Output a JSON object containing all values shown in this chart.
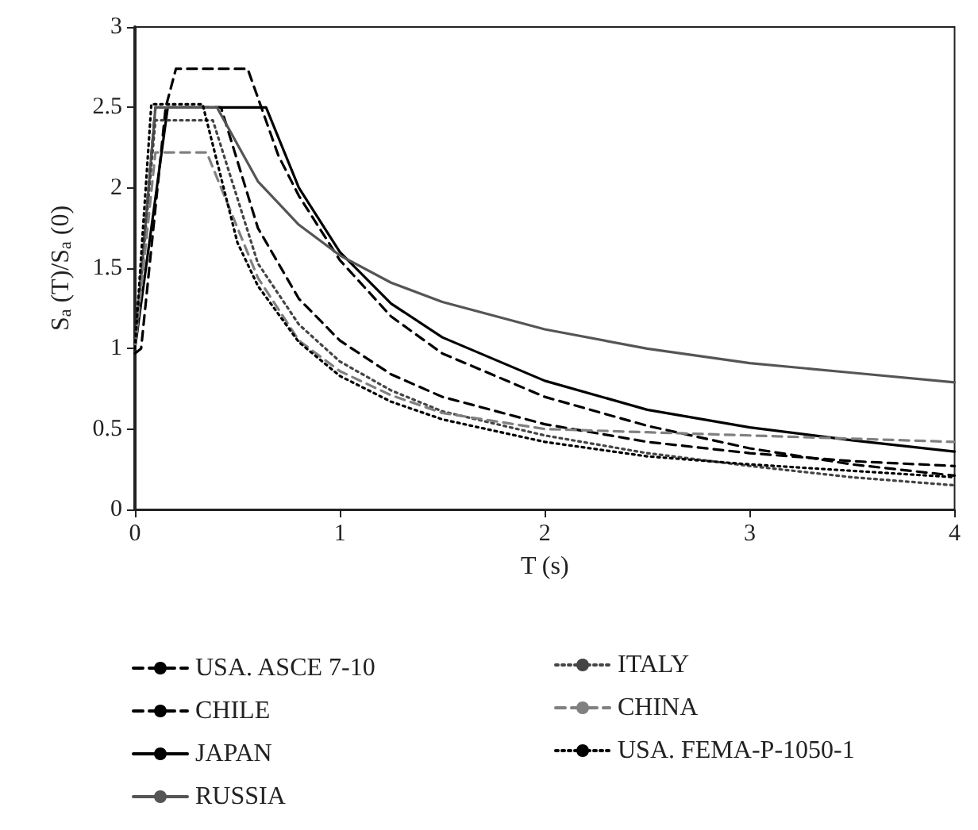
{
  "chart_data": {
    "type": "line",
    "xlabel": "T (s)",
    "ylabel": "S$_{a}$ (T)/S$_{a}$ (0)",
    "xlim": [
      0,
      4
    ],
    "xticks": [
      0,
      1,
      2,
      3,
      4
    ],
    "ylim": [
      0,
      3
    ],
    "yticks": [
      0,
      0.5,
      1,
      1.5,
      2,
      2.5,
      3
    ],
    "grid": false,
    "legend": "bottom",
    "marker": "none",
    "series": [
      {
        "name": "USA. ASCE 7-10",
        "color": "#000000",
        "line_style": "dashed",
        "x": [
          0,
          0.1,
          0.42,
          0.6,
          0.8,
          1,
          1.25,
          1.5,
          2,
          2.5,
          3,
          3.5,
          4
        ],
        "values": [
          1,
          2.5,
          2.5,
          1.75,
          1.31,
          1.05,
          0.84,
          0.7,
          0.53,
          0.42,
          0.35,
          0.3,
          0.27
        ]
      },
      {
        "name": "CHILE",
        "color": "#000000",
        "line_style": "dashed",
        "x": [
          0,
          0.03,
          0.15,
          0.2,
          0.55,
          0.7,
          0.8,
          1,
          1.25,
          1.5,
          2,
          2.5,
          3,
          3.5,
          4
        ],
        "values": [
          0.97,
          1,
          2.5,
          2.74,
          2.74,
          2.2,
          1.95,
          1.55,
          1.2,
          0.97,
          0.7,
          0.52,
          0.38,
          0.28,
          0.21
        ]
      },
      {
        "name": "JAPAN",
        "color": "#000000",
        "line_style": "solid",
        "x": [
          0,
          0.16,
          0.64,
          0.8,
          1,
          1.25,
          1.5,
          2,
          2.5,
          3,
          3.5,
          4
        ],
        "values": [
          1,
          2.5,
          2.5,
          2.0,
          1.6,
          1.28,
          1.07,
          0.8,
          0.62,
          0.51,
          0.43,
          0.36
        ]
      },
      {
        "name": "RUSSIA",
        "color": "#555555",
        "line_style": "solid",
        "x": [
          0,
          0.1,
          0.4,
          0.6,
          0.8,
          1,
          1.25,
          1.5,
          2,
          2.5,
          3,
          3.5,
          4
        ],
        "values": [
          1,
          2.5,
          2.5,
          2.04,
          1.77,
          1.58,
          1.41,
          1.29,
          1.12,
          1.0,
          0.91,
          0.85,
          0.79
        ]
      },
      {
        "name": "ITALY",
        "color": "#444444",
        "line_style": "dotted",
        "x": [
          0,
          0.1,
          0.38,
          0.6,
          0.8,
          1,
          1.25,
          1.5,
          2,
          2.5,
          3,
          3.5,
          4
        ],
        "values": [
          1,
          2.42,
          2.42,
          1.53,
          1.15,
          0.92,
          0.74,
          0.61,
          0.46,
          0.35,
          0.27,
          0.2,
          0.15
        ]
      },
      {
        "name": "CHINA",
        "color": "#808080",
        "line_style": "dashed",
        "x": [
          0,
          0.1,
          0.35,
          0.6,
          0.8,
          1,
          1.25,
          1.5,
          2,
          2.5,
          3,
          3.5,
          4
        ],
        "values": [
          1,
          2.22,
          2.22,
          1.44,
          1.05,
          0.86,
          0.71,
          0.6,
          0.5,
          0.48,
          0.46,
          0.44,
          0.42
        ]
      },
      {
        "name": "USA. FEMA-P-1050-1",
        "color": "#000000",
        "line_style": "dotted",
        "x": [
          0,
          0.08,
          0.33,
          0.5,
          0.6,
          0.8,
          1,
          1.25,
          1.5,
          2,
          2.5,
          3,
          3.5,
          4
        ],
        "values": [
          1,
          2.52,
          2.52,
          1.66,
          1.39,
          1.04,
          0.83,
          0.67,
          0.56,
          0.42,
          0.33,
          0.28,
          0.24,
          0.2
        ]
      }
    ]
  }
}
